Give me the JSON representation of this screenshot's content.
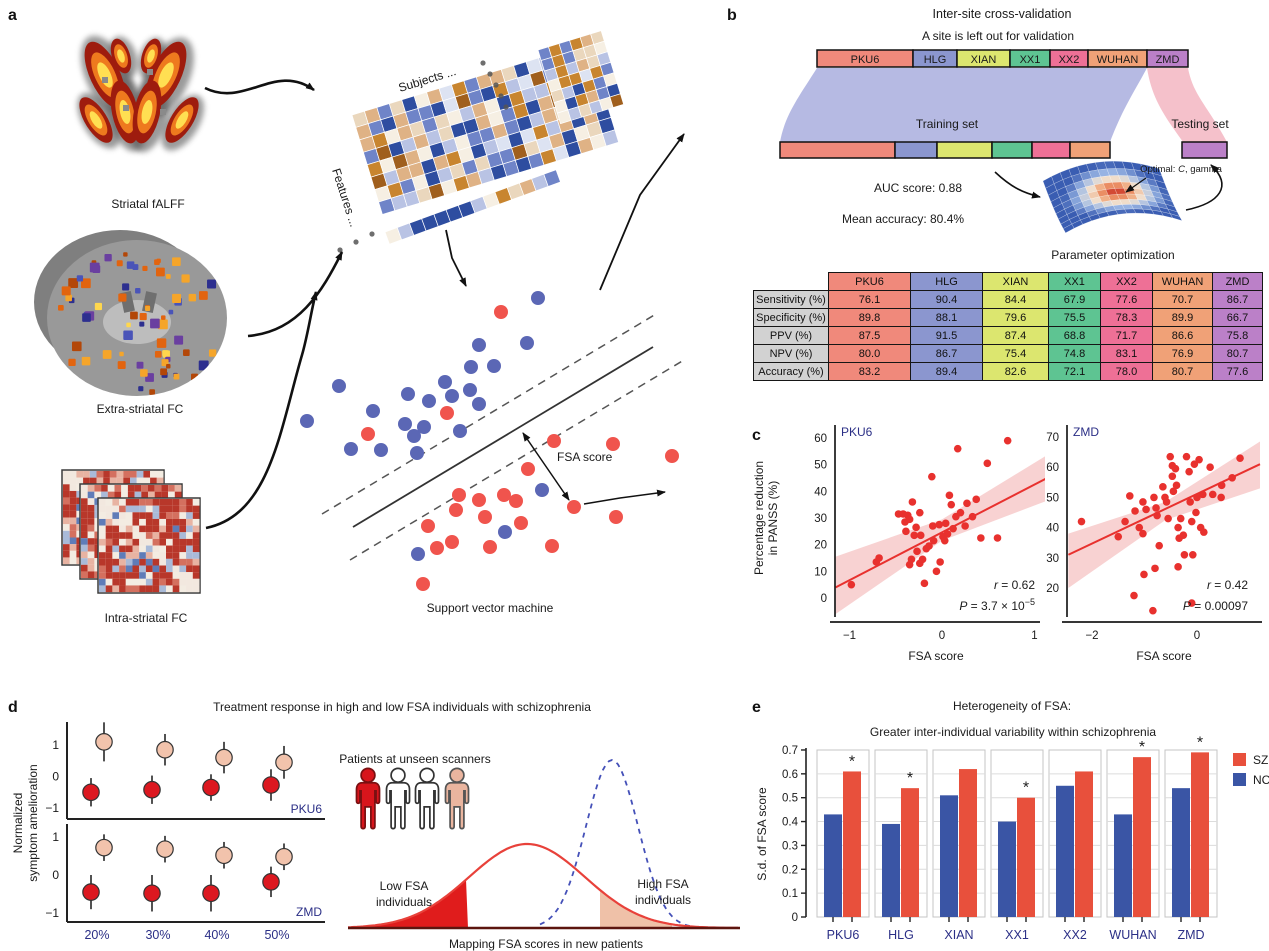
{
  "panels": {
    "a": {
      "label": "a",
      "striatal_label": "Striatal fALFF",
      "extra_label": "Extra-striatal FC",
      "intra_label": "Intra-striatal FC",
      "subjects_label": "Subjects ...",
      "features_label": "Features ...",
      "fsa_label": "FSA score",
      "svm_caption": "Support vector machine",
      "svm": {
        "blue_color": "#5b67b5",
        "red_color": "#f0544d",
        "blue_points": [
          [
            538,
            298
          ],
          [
            479,
            345
          ],
          [
            527,
            343
          ],
          [
            471,
            367
          ],
          [
            494,
            366
          ],
          [
            445,
            382
          ],
          [
            470,
            390
          ],
          [
            479,
            404
          ],
          [
            339,
            386
          ],
          [
            408,
            394
          ],
          [
            429,
            401
          ],
          [
            452,
            396
          ],
          [
            307,
            421
          ],
          [
            373,
            411
          ],
          [
            405,
            424
          ],
          [
            414,
            436
          ],
          [
            424,
            427
          ],
          [
            460,
            431
          ],
          [
            351,
            449
          ],
          [
            381,
            450
          ],
          [
            417,
            453
          ],
          [
            542,
            490
          ],
          [
            505,
            532
          ],
          [
            418,
            554
          ]
        ],
        "red_points": [
          [
            501,
            312
          ],
          [
            447,
            413
          ],
          [
            368,
            434
          ],
          [
            554,
            441
          ],
          [
            613,
            444
          ],
          [
            672,
            456
          ],
          [
            528,
            469
          ],
          [
            459,
            495
          ],
          [
            479,
            500
          ],
          [
            504,
            495
          ],
          [
            516,
            501
          ],
          [
            456,
            510
          ],
          [
            485,
            517
          ],
          [
            521,
            523
          ],
          [
            574,
            507
          ],
          [
            616,
            517
          ],
          [
            428,
            526
          ],
          [
            452,
            542
          ],
          [
            437,
            548
          ],
          [
            490,
            547
          ],
          [
            552,
            546
          ],
          [
            423,
            584
          ]
        ]
      }
    },
    "b": {
      "label": "b",
      "title": "Inter-site cross-validation",
      "subtitle": "A site is left out for validation",
      "training_label": "Training set",
      "testing_label": "Testing set",
      "auc_text": "AUC score: 0.88",
      "acc_text": "Mean accuracy: 80.4%",
      "optimal_prefix": "Optimal: ",
      "optimal_c": "C",
      "optimal_suffix": ", gamma",
      "param_title": "Parameter optimization",
      "ribbon_train_color": "#b2b6e2",
      "ribbon_test_color": "#f4bac5",
      "sites": [
        {
          "name": "PKU6",
          "color": "#f0897b",
          "top_w": 96,
          "train_w": 115
        },
        {
          "name": "HLG",
          "color": "#8b96cf",
          "top_w": 44,
          "train_w": 42
        },
        {
          "name": "XIAN",
          "color": "#dce66f",
          "top_w": 53,
          "train_w": 55
        },
        {
          "name": "XX1",
          "color": "#5ec492",
          "top_w": 40,
          "train_w": 40
        },
        {
          "name": "XX2",
          "color": "#ee7096",
          "top_w": 38,
          "train_w": 38
        },
        {
          "name": "WUHAN",
          "color": "#f0a177",
          "top_w": 59,
          "train_w": 40
        },
        {
          "name": "ZMD",
          "color": "#bb80c8",
          "top_w": 41,
          "train_w": 0
        }
      ]
    },
    "c": {
      "label": "c",
      "ylabel_line1": "Percentage reduction",
      "ylabel_line2": "in PANSS (%)"
    },
    "d": {
      "label": "d",
      "title": "Treatment response in high and low FSA individuals with schizophrenia",
      "ylabel_line1": "Normalized",
      "ylabel_line2": "symptom amelioration"
    },
    "e": {
      "label": "e"
    }
  },
  "chart_data": [
    {
      "id": "cv_metrics_table",
      "type": "table",
      "columns": [
        "PKU6",
        "HLG",
        "XIAN",
        "XX1",
        "XX2",
        "WUHAN",
        "ZMD"
      ],
      "column_colors": [
        "#f0897b",
        "#8b96cf",
        "#dce66f",
        "#5ec492",
        "#ee7096",
        "#f0a177",
        "#bb80c8"
      ],
      "row_headers": [
        "Sensitivity (%)",
        "Specificity (%)",
        "PPV (%)",
        "NPV (%)",
        "Accuracy (%)"
      ],
      "values": [
        [
          "76.1",
          "90.4",
          "84.4",
          "67.9",
          "77.6",
          "70.7",
          "86.7"
        ],
        [
          "89.8",
          "88.1",
          "79.6",
          "75.5",
          "78.3",
          "89.9",
          "66.7"
        ],
        [
          "87.5",
          "91.5",
          "87.4",
          "68.8",
          "71.7",
          "86.6",
          "75.8"
        ],
        [
          "80.0",
          "86.7",
          "75.4",
          "74.8",
          "83.1",
          "76.9",
          "80.7"
        ],
        [
          "83.2",
          "89.4",
          "82.6",
          "72.1",
          "78.0",
          "80.7",
          "77.6"
        ]
      ]
    },
    {
      "id": "scatter_pku6",
      "type": "scatter",
      "title": "PKU6",
      "xlabel": "FSA score",
      "ylabel": "Percentage reduction in PANSS (%)",
      "xlim": [
        -1.16,
        1.06
      ],
      "ylim": [
        -9,
        65
      ],
      "xticks": [
        -1,
        0,
        1
      ],
      "xtick_labels": [
        "−1",
        "0",
        "1"
      ],
      "yticks": [
        0,
        10,
        20,
        30,
        40,
        50,
        60
      ],
      "r_italic": "r",
      "r_rest": " = 0.62",
      "p_italic": "P",
      "p_rest": " = 3.7 × 10",
      "p_sup": "−5",
      "point_color": "#e8312e",
      "band_color": "#f7caca",
      "line": [
        [
          -1.15,
          4
        ],
        [
          1.25,
          47
        ]
      ],
      "band_upper": [
        [
          -1.15,
          15.5
        ],
        [
          0,
          29.5
        ],
        [
          1.25,
          56
        ]
      ],
      "band_lower": [
        [
          -1.15,
          -6
        ],
        [
          0,
          21.5
        ],
        [
          1.25,
          38
        ]
      ],
      "points": [
        [
          -0.98,
          5
        ],
        [
          -0.71,
          13.5
        ],
        [
          -0.68,
          15
        ],
        [
          -0.47,
          31.5
        ],
        [
          -0.42,
          31.5
        ],
        [
          -0.4,
          28.5
        ],
        [
          -0.39,
          25
        ],
        [
          -0.37,
          31
        ],
        [
          -0.35,
          29.5
        ],
        [
          -0.35,
          12.5
        ],
        [
          -0.33,
          14.5
        ],
        [
          -0.32,
          36
        ],
        [
          -0.3,
          23.5
        ],
        [
          -0.28,
          26.5
        ],
        [
          -0.27,
          17.5
        ],
        [
          -0.24,
          13
        ],
        [
          -0.24,
          32
        ],
        [
          -0.23,
          23.5
        ],
        [
          -0.21,
          14.5
        ],
        [
          -0.19,
          5.5
        ],
        [
          -0.17,
          18.5
        ],
        [
          -0.14,
          19.5
        ],
        [
          -0.11,
          45.5
        ],
        [
          -0.1,
          27
        ],
        [
          -0.09,
          21.5
        ],
        [
          -0.06,
          10
        ],
        [
          -0.03,
          27.5
        ],
        [
          -0.02,
          13.5
        ],
        [
          0.01,
          23
        ],
        [
          0.03,
          21.5
        ],
        [
          0.04,
          28
        ],
        [
          0.06,
          24
        ],
        [
          0.08,
          38.5
        ],
        [
          0.1,
          35
        ],
        [
          0.12,
          26
        ],
        [
          0.15,
          30.5
        ],
        [
          0.17,
          56
        ],
        [
          0.2,
          32
        ],
        [
          0.25,
          27
        ],
        [
          0.27,
          35.5
        ],
        [
          0.33,
          30.5
        ],
        [
          0.37,
          37
        ],
        [
          0.42,
          22.5
        ],
        [
          0.49,
          50.5
        ],
        [
          0.6,
          22.5
        ],
        [
          0.71,
          59
        ]
      ]
    },
    {
      "id": "scatter_zmd",
      "type": "scatter",
      "title": "ZMD",
      "xlabel": "FSA score",
      "xlim": [
        -2.48,
        1.24
      ],
      "ylim": [
        12,
        70
      ],
      "xticks": [
        -2,
        0
      ],
      "xtick_labels": [
        "−2",
        "0"
      ],
      "yticks": [
        20,
        30,
        40,
        50,
        60,
        70
      ],
      "r_italic": "r",
      "r_rest": " = 0.42",
      "p_italic": "P",
      "p_rest": " = 0.00097",
      "p_sup": "",
      "point_color": "#e8312e",
      "band_color": "#f7caca",
      "line": [
        [
          -2.45,
          31
        ],
        [
          1.2,
          61
        ]
      ],
      "band_upper": [
        [
          -2.45,
          38
        ],
        [
          -0.6,
          48.5
        ],
        [
          1.2,
          68.5
        ]
      ],
      "band_lower": [
        [
          -2.45,
          20
        ],
        [
          -0.6,
          42.5
        ],
        [
          1.2,
          53
        ]
      ],
      "points": [
        [
          -2.2,
          42
        ],
        [
          -1.5,
          37
        ],
        [
          -1.37,
          42
        ],
        [
          -1.28,
          50.5
        ],
        [
          -1.2,
          17.5
        ],
        [
          -1.18,
          45.5
        ],
        [
          -1.1,
          40
        ],
        [
          -1.03,
          48.5
        ],
        [
          -1.03,
          38
        ],
        [
          -1.01,
          24.5
        ],
        [
          -0.97,
          46
        ],
        [
          -0.84,
          12.5
        ],
        [
          -0.82,
          50
        ],
        [
          -0.8,
          26.5
        ],
        [
          -0.78,
          46.5
        ],
        [
          -0.76,
          44
        ],
        [
          -0.72,
          34
        ],
        [
          -0.65,
          53.5
        ],
        [
          -0.61,
          50
        ],
        [
          -0.58,
          48.5
        ],
        [
          -0.55,
          43
        ],
        [
          -0.51,
          63.5
        ],
        [
          -0.47,
          60.5
        ],
        [
          -0.47,
          57
        ],
        [
          -0.45,
          52
        ],
        [
          -0.41,
          59.5
        ],
        [
          -0.39,
          54
        ],
        [
          -0.36,
          40
        ],
        [
          -0.36,
          27
        ],
        [
          -0.34,
          36.5
        ],
        [
          -0.31,
          43
        ],
        [
          -0.26,
          37.5
        ],
        [
          -0.24,
          31
        ],
        [
          -0.2,
          63.5
        ],
        [
          -0.15,
          58.5
        ],
        [
          -0.13,
          48.5
        ],
        [
          -0.1,
          42
        ],
        [
          -0.1,
          15
        ],
        [
          -0.08,
          31
        ],
        [
          -0.05,
          61
        ],
        [
          -0.02,
          45
        ],
        [
          0,
          50
        ],
        [
          0.04,
          62.5
        ],
        [
          0.07,
          40
        ],
        [
          0.11,
          51
        ],
        [
          0.13,
          38.5
        ],
        [
          0.25,
          60
        ],
        [
          0.3,
          51
        ],
        [
          0.46,
          50
        ],
        [
          0.47,
          54
        ],
        [
          0.67,
          56.5
        ],
        [
          0.82,
          63
        ]
      ]
    },
    {
      "id": "treatment_pku6",
      "type": "dot",
      "site": "PKU6",
      "categories": [
        "20%",
        "30%",
        "40%",
        "50%"
      ],
      "ytick_labels": [
        "1",
        "0",
        "−1"
      ],
      "series": [
        {
          "name": "high-FSA",
          "color": "#f2c3ac",
          "values": [
            1.1,
            0.85,
            0.6,
            0.45
          ],
          "errors": [
            0.62,
            0.5,
            0.5,
            0.52
          ]
        },
        {
          "name": "low-FSA",
          "color": "#dc1820",
          "values": [
            -0.5,
            -0.42,
            -0.35,
            -0.27
          ],
          "errors": [
            0.45,
            0.45,
            0.42,
            0.5
          ]
        }
      ]
    },
    {
      "id": "treatment_zmd",
      "type": "dot",
      "site": "ZMD",
      "categories": [
        "20%",
        "30%",
        "40%",
        "50%"
      ],
      "ytick_labels": [
        "1",
        "0",
        "−1"
      ],
      "series": [
        {
          "name": "high-FSA",
          "color": "#f2c3ac",
          "values": [
            0.72,
            0.68,
            0.52,
            0.48
          ],
          "errors": [
            0.35,
            0.35,
            0.35,
            0.35
          ]
        },
        {
          "name": "low-FSA",
          "color": "#dc1820",
          "values": [
            -0.45,
            -0.48,
            -0.48,
            -0.18
          ],
          "errors": [
            0.45,
            0.48,
            0.48,
            0.4
          ]
        }
      ]
    },
    {
      "id": "fsa_mapping",
      "type": "area",
      "curves": [
        {
          "name": "new-patients",
          "style": "solid",
          "color": "#e8413a",
          "center": 527,
          "sigma": 58,
          "height": 84
        },
        {
          "name": "reference",
          "style": "dashed",
          "color": "#4450b8",
          "center": 612,
          "sigma": 26,
          "height": 168
        }
      ],
      "baseline_y": 928,
      "x_range": [
        348,
        740
      ],
      "low_region_max_x": 468,
      "high_region": [
        600,
        672
      ],
      "low_fill": "#e01c1c",
      "high_fill": "#efc1a8",
      "baseline_color": "#5c150f",
      "labels": {
        "patients": "Patients at unseen scanners",
        "low1": "Low FSA",
        "low2": "individuals",
        "high1": "High FSA",
        "high2": "individuals",
        "caption": "Mapping FSA scores in new patients"
      }
    },
    {
      "id": "sd_of_fsa_bars",
      "type": "bar",
      "title": "Heterogeneity of FSA:",
      "subtitle": "Greater inter-individual variability within schizophrenia",
      "ylabel": "S.d. of FSA score",
      "ylim": [
        0,
        0.7
      ],
      "ytick_labels": [
        "0",
        "0.1",
        "0.2",
        "0.3",
        "0.4",
        "0.5",
        "0.6",
        "0.7"
      ],
      "categories": [
        "PKU6",
        "HLG",
        "XIAN",
        "XX1",
        "XX2",
        "WUHAN",
        "ZMD"
      ],
      "series": [
        {
          "name": "SZ",
          "color": "#e8503c",
          "values": [
            0.61,
            0.54,
            0.62,
            0.5,
            0.61,
            0.67,
            0.69
          ]
        },
        {
          "name": "NC",
          "color": "#3a55a5",
          "values": [
            0.43,
            0.39,
            0.51,
            0.4,
            0.55,
            0.43,
            0.54
          ]
        }
      ],
      "significant": [
        true,
        true,
        false,
        true,
        false,
        true,
        true
      ],
      "legend_position": "right"
    }
  ]
}
